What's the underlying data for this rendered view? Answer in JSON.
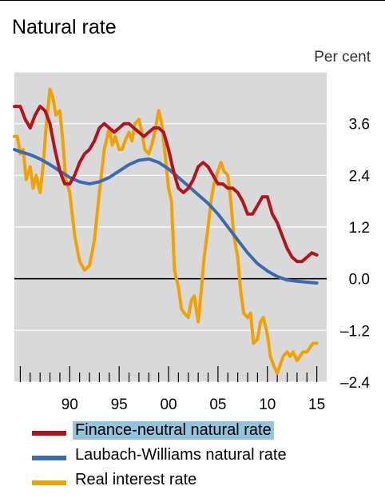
{
  "title": "Natural rate",
  "unit": "Per cent",
  "chart_data": {
    "type": "line",
    "ylim": [
      -2.4,
      4.8
    ],
    "xlim": [
      1984.4,
      2016.0
    ],
    "y_ticks": [
      "3.6",
      "2.4",
      "1.2",
      "0.0",
      "–1.2",
      "–2.4"
    ],
    "y_tick_values": [
      3.6,
      2.4,
      1.2,
      0.0,
      -1.2,
      -2.4
    ],
    "x_ticks": [
      "90",
      "95",
      "00",
      "05",
      "10",
      "15"
    ],
    "x_tick_values": [
      1990,
      1995,
      2000,
      2005,
      2010,
      2015
    ],
    "grid": "horizontal-white",
    "background": "#d9d9d9",
    "legend_position": "bottom",
    "series": [
      {
        "name": "Finance-neutral natural rate",
        "color": "#b5121b",
        "highlight": "#92c4df",
        "x": [
          1984.4,
          1984.8,
          1985.0,
          1985.5,
          1986.0,
          1986.5,
          1987.0,
          1987.5,
          1988.0,
          1988.5,
          1989.0,
          1989.5,
          1990.0,
          1990.5,
          1991.0,
          1991.5,
          1992.0,
          1992.5,
          1993.0,
          1993.5,
          1994.0,
          1994.5,
          1995.0,
          1995.5,
          1996.0,
          1996.5,
          1997.0,
          1997.5,
          1998.0,
          1998.5,
          1999.0,
          1999.5,
          2000.0,
          2000.5,
          2001.0,
          2001.5,
          2002.0,
          2002.5,
          2003.0,
          2003.5,
          2004.0,
          2004.5,
          2005.0,
          2005.5,
          2006.0,
          2006.5,
          2007.0,
          2007.5,
          2008.0,
          2008.5,
          2009.0,
          2009.5,
          2010.0,
          2010.5,
          2011.0,
          2011.5,
          2012.0,
          2012.5,
          2013.0,
          2013.5,
          2014.0,
          2014.5,
          2015.0
        ],
        "y": [
          4.0,
          4.0,
          4.0,
          3.7,
          3.5,
          3.8,
          4.0,
          3.9,
          3.6,
          3.0,
          2.5,
          2.2,
          2.2,
          2.4,
          2.7,
          2.9,
          3.0,
          3.2,
          3.5,
          3.6,
          3.5,
          3.4,
          3.5,
          3.6,
          3.6,
          3.5,
          3.4,
          3.3,
          3.4,
          3.5,
          3.5,
          3.4,
          3.0,
          2.5,
          2.1,
          2.0,
          2.1,
          2.3,
          2.6,
          2.7,
          2.6,
          2.4,
          2.2,
          2.2,
          2.1,
          2.1,
          2.0,
          1.8,
          1.5,
          1.5,
          1.7,
          1.9,
          1.9,
          1.5,
          1.3,
          1.0,
          0.7,
          0.5,
          0.4,
          0.4,
          0.5,
          0.6,
          0.55
        ]
      },
      {
        "name": "Laubach-Williams natural rate",
        "color": "#3a6bb0",
        "x": [
          1984.4,
          1985.0,
          1986.0,
          1987.0,
          1988.0,
          1989.0,
          1990.0,
          1991.0,
          1992.0,
          1993.0,
          1994.0,
          1995.0,
          1996.0,
          1997.0,
          1998.0,
          1999.0,
          2000.0,
          2001.0,
          2002.0,
          2003.0,
          2004.0,
          2005.0,
          2006.0,
          2007.0,
          2008.0,
          2009.0,
          2010.0,
          2011.0,
          2012.0,
          2013.0,
          2014.0,
          2015.0
        ],
        "y": [
          3.0,
          2.95,
          2.88,
          2.78,
          2.65,
          2.5,
          2.35,
          2.25,
          2.2,
          2.25,
          2.35,
          2.5,
          2.65,
          2.75,
          2.78,
          2.7,
          2.55,
          2.35,
          2.15,
          1.95,
          1.75,
          1.5,
          1.2,
          0.9,
          0.6,
          0.35,
          0.18,
          0.05,
          -0.03,
          -0.06,
          -0.08,
          -0.1
        ]
      },
      {
        "name": "Real interest rate",
        "color": "#f2a100",
        "x": [
          1984.4,
          1984.7,
          1985.0,
          1985.3,
          1985.6,
          1986.0,
          1986.3,
          1986.6,
          1987.0,
          1987.3,
          1987.6,
          1988.0,
          1988.3,
          1988.6,
          1989.0,
          1989.3,
          1989.6,
          1990.0,
          1990.5,
          1991.0,
          1991.5,
          1992.0,
          1992.5,
          1993.0,
          1993.5,
          1994.0,
          1994.3,
          1994.6,
          1995.0,
          1995.3,
          1995.6,
          1996.0,
          1996.3,
          1996.6,
          1997.0,
          1997.3,
          1997.6,
          1998.0,
          1998.3,
          1998.6,
          1999.0,
          1999.3,
          1999.6,
          2000.0,
          2000.3,
          2000.6,
          2001.0,
          2001.3,
          2001.6,
          2002.0,
          2002.3,
          2002.6,
          2003.0,
          2003.3,
          2003.6,
          2004.0,
          2004.3,
          2004.6,
          2005.0,
          2005.3,
          2005.6,
          2006.0,
          2006.3,
          2006.6,
          2007.0,
          2007.3,
          2007.6,
          2008.0,
          2008.3,
          2008.6,
          2009.0,
          2009.3,
          2009.6,
          2010.0,
          2010.3,
          2010.6,
          2011.0,
          2011.3,
          2011.6,
          2012.0,
          2012.3,
          2012.6,
          2013.0,
          2013.3,
          2013.6,
          2014.0,
          2014.3,
          2014.6,
          2015.0
        ],
        "y": [
          3.3,
          3.3,
          2.9,
          3.0,
          2.3,
          2.6,
          2.1,
          2.4,
          2.0,
          2.6,
          3.5,
          4.4,
          4.2,
          3.8,
          3.9,
          3.2,
          2.3,
          2.0,
          1.0,
          0.4,
          0.2,
          0.3,
          0.9,
          2.0,
          3.0,
          3.5,
          3.1,
          3.3,
          3.0,
          3.0,
          3.2,
          3.4,
          3.2,
          3.6,
          3.7,
          3.4,
          3.0,
          2.9,
          3.1,
          3.4,
          3.9,
          3.6,
          3.0,
          2.1,
          1.8,
          0.2,
          -0.2,
          -0.7,
          -0.8,
          -0.9,
          -0.5,
          -0.4,
          -1.0,
          -0.3,
          0.5,
          1.2,
          1.8,
          2.2,
          2.5,
          2.7,
          2.5,
          2.4,
          1.8,
          1.0,
          0.5,
          -0.3,
          -0.8,
          -0.9,
          -0.8,
          -1.5,
          -1.4,
          -1.0,
          -0.9,
          -1.3,
          -1.8,
          -2.0,
          -2.2,
          -2.0,
          -1.8,
          -1.7,
          -1.8,
          -1.7,
          -1.9,
          -1.8,
          -1.7,
          -1.7,
          -1.6,
          -1.5,
          -1.5
        ]
      }
    ]
  }
}
